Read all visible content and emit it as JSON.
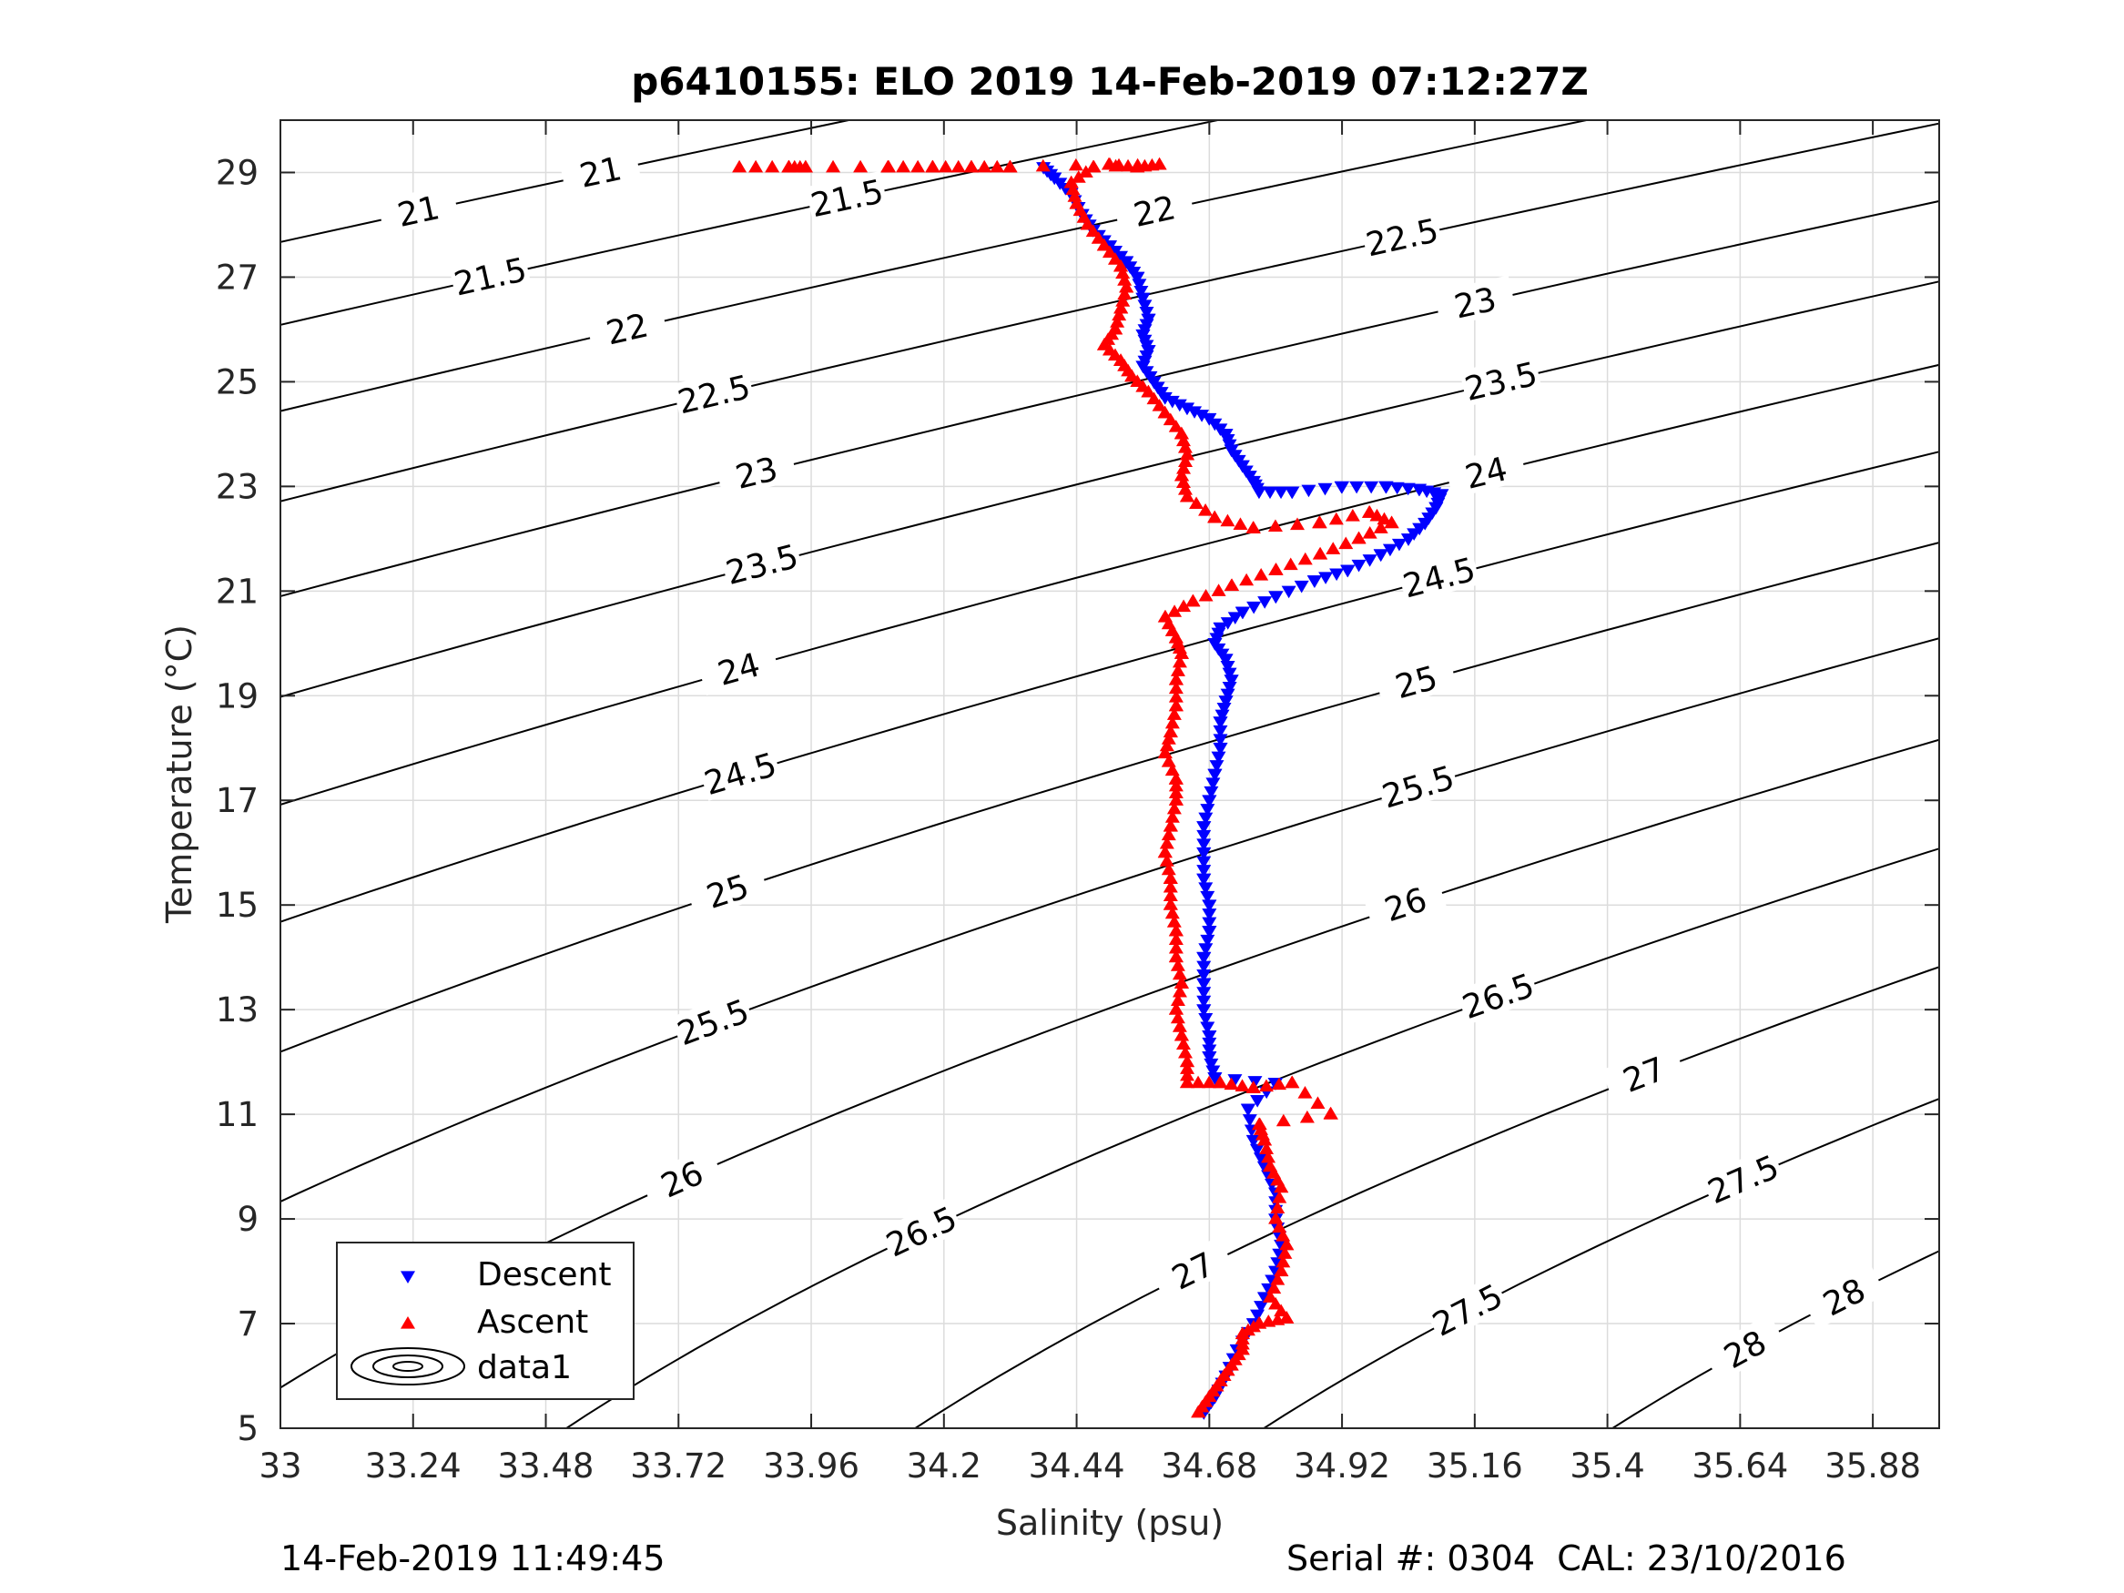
{
  "chart_data": {
    "type": "scatter",
    "title": "p6410155: ELO 2019 14-Feb-2019 07:12:27Z",
    "xlabel": "Salinity (psu)",
    "ylabel": "Temperature (°C)",
    "xlim": [
      33.0,
      36.0
    ],
    "ylim": [
      5,
      30
    ],
    "xticks": [
      33,
      33.24,
      33.48,
      33.72,
      33.96,
      34.2,
      34.44,
      34.68,
      34.92,
      35.16,
      35.4,
      35.64,
      35.88
    ],
    "xtick_labels": [
      "33",
      "33.24",
      "33.48",
      "33.72",
      "33.96",
      "34.2",
      "34.44",
      "34.68",
      "34.92",
      "35.16",
      "35.4",
      "35.64",
      "35.88"
    ],
    "yticks": [
      5,
      7,
      9,
      11,
      13,
      15,
      17,
      19,
      21,
      23,
      25,
      27,
      29
    ],
    "ytick_labels": [
      "5",
      "7",
      "9",
      "11",
      "13",
      "15",
      "17",
      "19",
      "21",
      "23",
      "25",
      "27",
      "29"
    ],
    "grid": true,
    "legend_position": "bottom-left",
    "density_contour_levels": [
      21,
      21.5,
      22,
      22.5,
      23,
      23.5,
      24,
      24.5,
      25,
      25.5,
      26,
      26.5,
      27,
      27.5,
      28
    ],
    "density_contour_color": "#000000",
    "series": [
      {
        "name": "Descent",
        "marker": "triangle-down",
        "color": "#0000ff",
        "points": [
          [
            34.38,
            29.1
          ],
          [
            34.4,
            28.9
          ],
          [
            34.43,
            28.6
          ],
          [
            34.45,
            28.2
          ],
          [
            34.47,
            27.9
          ],
          [
            34.5,
            27.6
          ],
          [
            34.53,
            27.3
          ],
          [
            34.55,
            27.0
          ],
          [
            34.56,
            26.6
          ],
          [
            34.57,
            26.2
          ],
          [
            34.56,
            25.9
          ],
          [
            34.57,
            25.6
          ],
          [
            34.56,
            25.3
          ],
          [
            34.58,
            25.0
          ],
          [
            34.6,
            24.7
          ],
          [
            34.64,
            24.5
          ],
          [
            34.68,
            24.3
          ],
          [
            34.71,
            24.0
          ],
          [
            34.72,
            23.7
          ],
          [
            34.74,
            23.4
          ],
          [
            34.76,
            23.1
          ],
          [
            34.77,
            22.9
          ],
          [
            34.83,
            22.9
          ],
          [
            34.92,
            23.0
          ],
          [
            35.0,
            23.0
          ],
          [
            35.06,
            22.95
          ],
          [
            35.1,
            22.85
          ],
          [
            35.09,
            22.6
          ],
          [
            35.07,
            22.3
          ],
          [
            35.04,
            22.0
          ],
          [
            34.99,
            21.7
          ],
          [
            34.93,
            21.4
          ],
          [
            34.87,
            21.2
          ],
          [
            34.8,
            20.9
          ],
          [
            34.74,
            20.6
          ],
          [
            34.7,
            20.3
          ],
          [
            34.69,
            20.0
          ],
          [
            34.71,
            19.7
          ],
          [
            34.72,
            19.3
          ],
          [
            34.71,
            18.9
          ],
          [
            34.7,
            18.5
          ],
          [
            34.7,
            18.0
          ],
          [
            34.69,
            17.5
          ],
          [
            34.68,
            17.0
          ],
          [
            34.67,
            16.5
          ],
          [
            34.67,
            16.0
          ],
          [
            34.67,
            15.5
          ],
          [
            34.68,
            15.0
          ],
          [
            34.68,
            14.5
          ],
          [
            34.67,
            14.0
          ],
          [
            34.67,
            13.5
          ],
          [
            34.67,
            13.0
          ],
          [
            34.68,
            12.5
          ],
          [
            34.68,
            12.1
          ],
          [
            34.69,
            11.7
          ],
          [
            34.8,
            11.6
          ],
          [
            34.75,
            11.1
          ],
          [
            34.76,
            10.5
          ],
          [
            34.78,
            10.0
          ],
          [
            34.8,
            9.5
          ],
          [
            34.8,
            9.0
          ],
          [
            34.81,
            8.5
          ],
          [
            34.8,
            8.0
          ],
          [
            34.78,
            7.5
          ],
          [
            34.76,
            7.0
          ],
          [
            34.73,
            6.5
          ],
          [
            34.71,
            6.0
          ],
          [
            34.69,
            5.6
          ],
          [
            34.67,
            5.3
          ]
        ]
      },
      {
        "name": "Ascent",
        "marker": "triangle-up",
        "color": "#ff0000",
        "points": [
          [
            33.83,
            29.1
          ],
          [
            33.92,
            29.1
          ],
          [
            33.95,
            29.1
          ],
          [
            34.1,
            29.1
          ],
          [
            34.18,
            29.1
          ],
          [
            34.25,
            29.1
          ],
          [
            34.32,
            29.1
          ],
          [
            34.5,
            29.15
          ],
          [
            34.55,
            29.1
          ],
          [
            34.59,
            29.15
          ],
          [
            34.47,
            29.1
          ],
          [
            34.43,
            28.8
          ],
          [
            34.44,
            28.4
          ],
          [
            34.46,
            28.0
          ],
          [
            34.49,
            27.6
          ],
          [
            34.52,
            27.2
          ],
          [
            34.53,
            26.8
          ],
          [
            34.52,
            26.4
          ],
          [
            34.51,
            26.0
          ],
          [
            34.49,
            25.7
          ],
          [
            34.52,
            25.4
          ],
          [
            34.54,
            25.1
          ],
          [
            34.57,
            24.8
          ],
          [
            34.6,
            24.4
          ],
          [
            34.63,
            24.0
          ],
          [
            34.64,
            23.6
          ],
          [
            34.63,
            23.2
          ],
          [
            34.64,
            22.8
          ],
          [
            34.69,
            22.4
          ],
          [
            34.76,
            22.2
          ],
          [
            34.88,
            22.3
          ],
          [
            34.97,
            22.5
          ],
          [
            35.01,
            22.3
          ],
          [
            34.95,
            22.0
          ],
          [
            34.88,
            21.7
          ],
          [
            34.8,
            21.4
          ],
          [
            34.72,
            21.1
          ],
          [
            34.65,
            20.8
          ],
          [
            34.6,
            20.5
          ],
          [
            34.62,
            20.1
          ],
          [
            34.63,
            19.8
          ],
          [
            34.62,
            19.3
          ],
          [
            34.62,
            18.8
          ],
          [
            34.61,
            18.3
          ],
          [
            34.6,
            17.9
          ],
          [
            34.62,
            17.4
          ],
          [
            34.62,
            17.0
          ],
          [
            34.61,
            16.5
          ],
          [
            34.6,
            16.0
          ],
          [
            34.61,
            15.5
          ],
          [
            34.61,
            15.0
          ],
          [
            34.62,
            14.5
          ],
          [
            34.62,
            14.0
          ],
          [
            34.63,
            13.5
          ],
          [
            34.62,
            13.0
          ],
          [
            34.63,
            12.5
          ],
          [
            34.64,
            12.0
          ],
          [
            34.64,
            11.6
          ],
          [
            34.7,
            11.6
          ],
          [
            34.76,
            11.5
          ],
          [
            34.83,
            11.6
          ],
          [
            34.9,
            11.0
          ],
          [
            34.77,
            10.8
          ],
          [
            34.78,
            10.5
          ],
          [
            34.79,
            10.0
          ],
          [
            34.81,
            9.6
          ],
          [
            34.8,
            9.0
          ],
          [
            34.82,
            8.5
          ],
          [
            34.81,
            8.0
          ],
          [
            34.79,
            7.5
          ],
          [
            34.82,
            7.1
          ],
          [
            34.77,
            7.0
          ],
          [
            34.74,
            6.8
          ],
          [
            34.74,
            6.5
          ],
          [
            34.72,
            6.2
          ],
          [
            34.7,
            5.9
          ],
          [
            34.68,
            5.6
          ],
          [
            34.66,
            5.3
          ]
        ]
      },
      {
        "name": "data1",
        "marker": "contour",
        "color": "#000000",
        "points": []
      }
    ]
  },
  "footer": {
    "left": "14-Feb-2019 11:49:45",
    "right": "Serial #: 0304  CAL: 23/10/2016"
  }
}
